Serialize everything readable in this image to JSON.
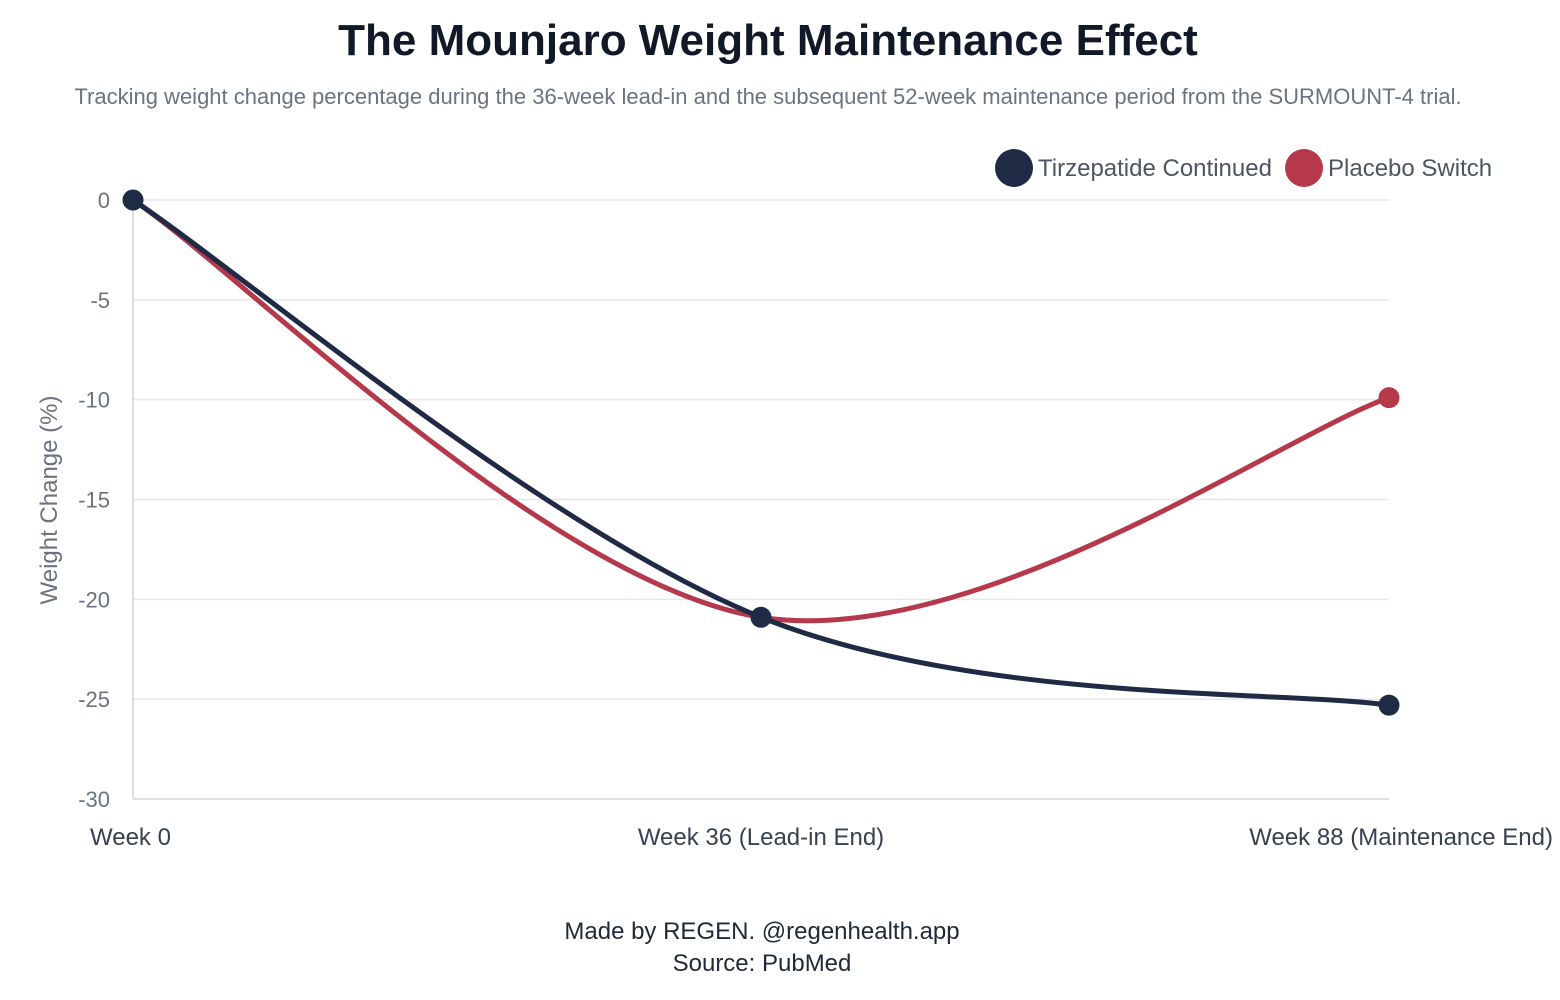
{
  "header": {
    "title": "The Mounjaro Weight Maintenance Effect",
    "subtitle": "Tracking weight change percentage during the 36-week lead-in and the subsequent 52-week maintenance period from the SURMOUNT-4 trial."
  },
  "footer": {
    "credit": "Made by REGEN. @regenhealth.app",
    "source": "Source: PubMed"
  },
  "chart_data": {
    "type": "line",
    "title": "The Mounjaro Weight Maintenance Effect",
    "xlabel": "",
    "ylabel": "Weight Change (%)",
    "categories": [
      "Week 0",
      "Week 36 (Lead-in End)",
      "Week 88 (Maintenance End)"
    ],
    "ylim": [
      -30,
      0
    ],
    "yticks": [
      0,
      -5,
      -10,
      -15,
      -20,
      -25,
      -30
    ],
    "grid": true,
    "legend_position": "top-right",
    "series": [
      {
        "name": "Tirzepatide Continued",
        "color": "#1f2a44",
        "values": [
          0,
          -20.9,
          -25.3
        ]
      },
      {
        "name": "Placebo Switch",
        "color": "#b5394b",
        "values": [
          0,
          -20.9,
          -9.9
        ]
      }
    ]
  }
}
